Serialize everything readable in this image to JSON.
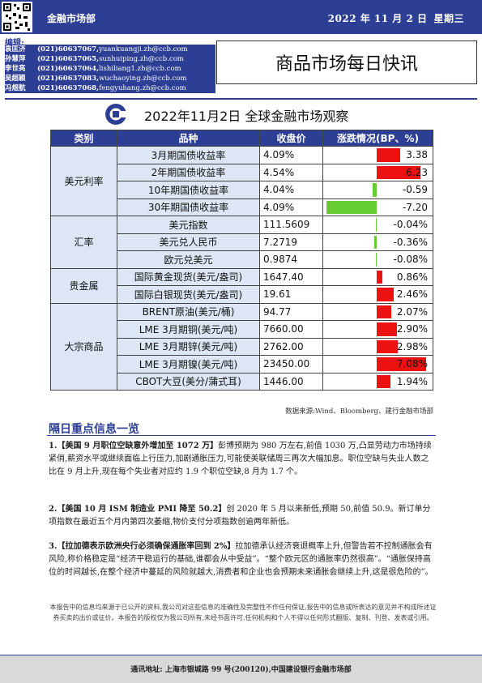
{
  "header": {
    "dept": "金融市场部",
    "date": "2022 年 11 月 2 日",
    "weekday": "星期三"
  },
  "editors_label": "编辑:",
  "editors": [
    {
      "name": "袁匡济",
      "phone": "(021)60637067,",
      "email": "yuankuangji.zh@ccb.com"
    },
    {
      "name": "孙慧萍",
      "phone": "(021)60637065,",
      "email": "sunhuiping.zh@ccb.com"
    },
    {
      "name": "李世亮",
      "phone": "(021)60637064,",
      "email": "lishiliang1.zh@ccb.com"
    },
    {
      "name": "吴超颖",
      "phone": "(021)60637083,",
      "email": "wuchaoying.zh@ccb.com"
    },
    {
      "name": "冯煜航",
      "phone": "(021)60637068,",
      "email": "fengyuhang.zh@ccb.com"
    }
  ],
  "report_title": "商品市场每日快讯",
  "table_title": "2022年11月2日 全球金融市场观察",
  "table": {
    "headers": [
      "类别",
      "品种",
      "收盘价",
      "涨跌情况(BP、%)"
    ],
    "groups": [
      {
        "category": "美元利率",
        "rows": [
          {
            "name": "3月期国债收益率",
            "price": "4.09%",
            "change": "3.38",
            "v": 3.38
          },
          {
            "name": "2年期国债收益率",
            "price": "4.54%",
            "change": "6.23",
            "v": 6.23
          },
          {
            "name": "10年期国债收益率",
            "price": "4.04%",
            "change": "-0.59",
            "v": -0.59
          },
          {
            "name": "30年期国债收益率",
            "price": "4.09%",
            "change": "-7.20",
            "v": -7.2
          }
        ]
      },
      {
        "category": "汇率",
        "rows": [
          {
            "name": "美元指数",
            "price": "111.5609",
            "change": "-0.04%",
            "v": -0.04
          },
          {
            "name": "美元兑人民币",
            "price": "7.2719",
            "change": "-0.36%",
            "v": -0.36
          },
          {
            "name": "欧元兑美元",
            "price": "0.9874",
            "change": "-0.08%",
            "v": -0.08
          }
        ]
      },
      {
        "category": "贵金属",
        "rows": [
          {
            "name": "国际黄金现货(美元/盎司)",
            "price": "1647.40",
            "change": "0.86%",
            "v": 0.86
          },
          {
            "name": "国际白银现货(美元/盎司)",
            "price": "19.61",
            "change": "2.46%",
            "v": 2.46
          }
        ]
      },
      {
        "category": "大宗商品",
        "rows": [
          {
            "name": "BRENT原油(美元/桶)",
            "price": "94.77",
            "change": "2.07%",
            "v": 2.07
          },
          {
            "name": "LME 3月期铜(美元/吨)",
            "price": "7660.00",
            "change": "2.90%",
            "v": 2.9
          },
          {
            "name": "LME 3月期锌(美元/吨)",
            "price": "2762.00",
            "change": "2.98%",
            "v": 2.98
          },
          {
            "name": "LME 3月期镍(美元/吨)",
            "price": "23450.00",
            "change": "7.08%",
            "v": 7.08
          },
          {
            "name": "CBOT大豆(美分/蒲式耳)",
            "price": "1446.00",
            "change": "1.94%",
            "v": 1.94
          }
        ]
      }
    ]
  },
  "source": "数据来源:Wind、Bloomberg、建行金融市场部",
  "section_title": "隔日重点信息一览",
  "news": [
    {
      "lead": "1.【美国 9 月职位空缺意外增加至 1072 万】",
      "body": "彭博预期为 980 万左右,前值 1030 万,凸显劳动力市场持续紧俏,薪资水平或继续面临上行压力,加剧通胀压力,可能使美联储周三再次大幅加息。职位空缺与失业人数之比在 9 月上升,现在每个失业者对应约 1.9 个职位空缺,8 月为 1.7 个。"
    },
    {
      "lead": "2.【美国 10 月 ISM 制造业 PMI 降至 50.2】",
      "body": "创 2020 年 5 月以来新低,预期 50,前值 50.9。新订单分项指数在最近五个月内第四次萎缩,物价支付分项指数创逾两年新低。"
    },
    {
      "lead": "3.【拉加德表示欧洲央行必须确保通胀率回到 2%】",
      "body": "拉加德承认经济衰退概率上升,但警告若不控制通胀会有风险,称价格稳定是“经济平稳运行的基础,谁都会从中受益”。“整个欧元区的通胀率仍然很高”。“通胀保持高位的时间越长,在整个经济中蔓延的风险就越大,消费者和企业也会预期未来通胀会继续上升,这是很危险的”。"
    }
  ],
  "disclaimer": "本报告中的信息均来源于已公开的资料,我公司对这些信息的准确性及完整性不作任何保证,报告中的信息或所表达的意见并不构成所述证券买卖的出价或征价。本报告的版权仅为我公司所有,未经书面许可,任何机构和个人不得以任何形式翻版、复制、刊登、发表或引用。",
  "footer": "通讯地址:  上海市银城路 99 号(200120),中国建设银行金融市场部",
  "colors": {
    "brand": "#2d3f95",
    "up": "#ee1111",
    "down": "#66cc33",
    "cell": "#dce6f4"
  }
}
